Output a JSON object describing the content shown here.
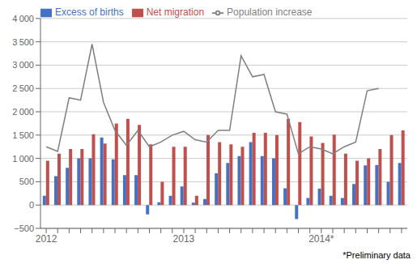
{
  "chart_data": {
    "type": "bar",
    "categories": [
      "2012",
      null,
      null,
      null,
      null,
      null,
      null,
      null,
      null,
      null,
      null,
      null,
      "2013",
      null,
      null,
      null,
      null,
      null,
      null,
      null,
      null,
      null,
      null,
      null,
      "2014*",
      null,
      null,
      null,
      null,
      null,
      null,
      null
    ],
    "series": [
      {
        "name": "Excess of births",
        "color": "#4472C4",
        "values": [
          200,
          620,
          800,
          1000,
          1000,
          1450,
          980,
          640,
          640,
          -200,
          60,
          200,
          400,
          50,
          130,
          680,
          900,
          1050,
          1350,
          1050,
          1000,
          360,
          -300,
          150,
          350,
          200,
          150,
          450,
          850,
          860,
          500,
          900
        ]
      },
      {
        "name": "Net migration",
        "color": "#C0504D",
        "values": [
          950,
          1100,
          1200,
          1200,
          1520,
          1320,
          1750,
          1850,
          1720,
          1300,
          500,
          1250,
          1250,
          200,
          1500,
          1350,
          1300,
          1250,
          1550,
          1550,
          1500,
          1850,
          1780,
          1470,
          1330,
          1510,
          1100,
          950,
          1000,
          1200,
          1500,
          1600
        ]
      },
      {
        "name": "Population increase",
        "type": "line",
        "color": "#7F7F7F",
        "values": [
          1250,
          1150,
          2300,
          2250,
          3450,
          2200,
          1600,
          1280,
          1600,
          1250,
          1350,
          1500,
          1580,
          1400,
          1350,
          1600,
          1600,
          3200,
          2750,
          2800,
          2000,
          1950,
          1100,
          1250,
          1200,
          1100,
          1250,
          1350,
          2450,
          2500,
          null,
          null
        ]
      }
    ],
    "ylim": [
      -500,
      4000
    ],
    "yticks": [
      {
        "value": -500,
        "label": "−500"
      },
      0,
      500,
      {
        "value": 1000,
        "label": "1 000"
      },
      {
        "value": 1500,
        "label": "1 500"
      },
      {
        "value": 2000,
        "label": "2 000"
      },
      {
        "value": 2500,
        "label": "2 500"
      },
      {
        "value": 3000,
        "label": "3 000"
      },
      {
        "value": 3500,
        "label": "3 500"
      },
      {
        "value": 4000,
        "label": "4 000"
      }
    ],
    "grid": true,
    "legend": "upper left",
    "annotations": [
      "*Preliminary data"
    ]
  }
}
